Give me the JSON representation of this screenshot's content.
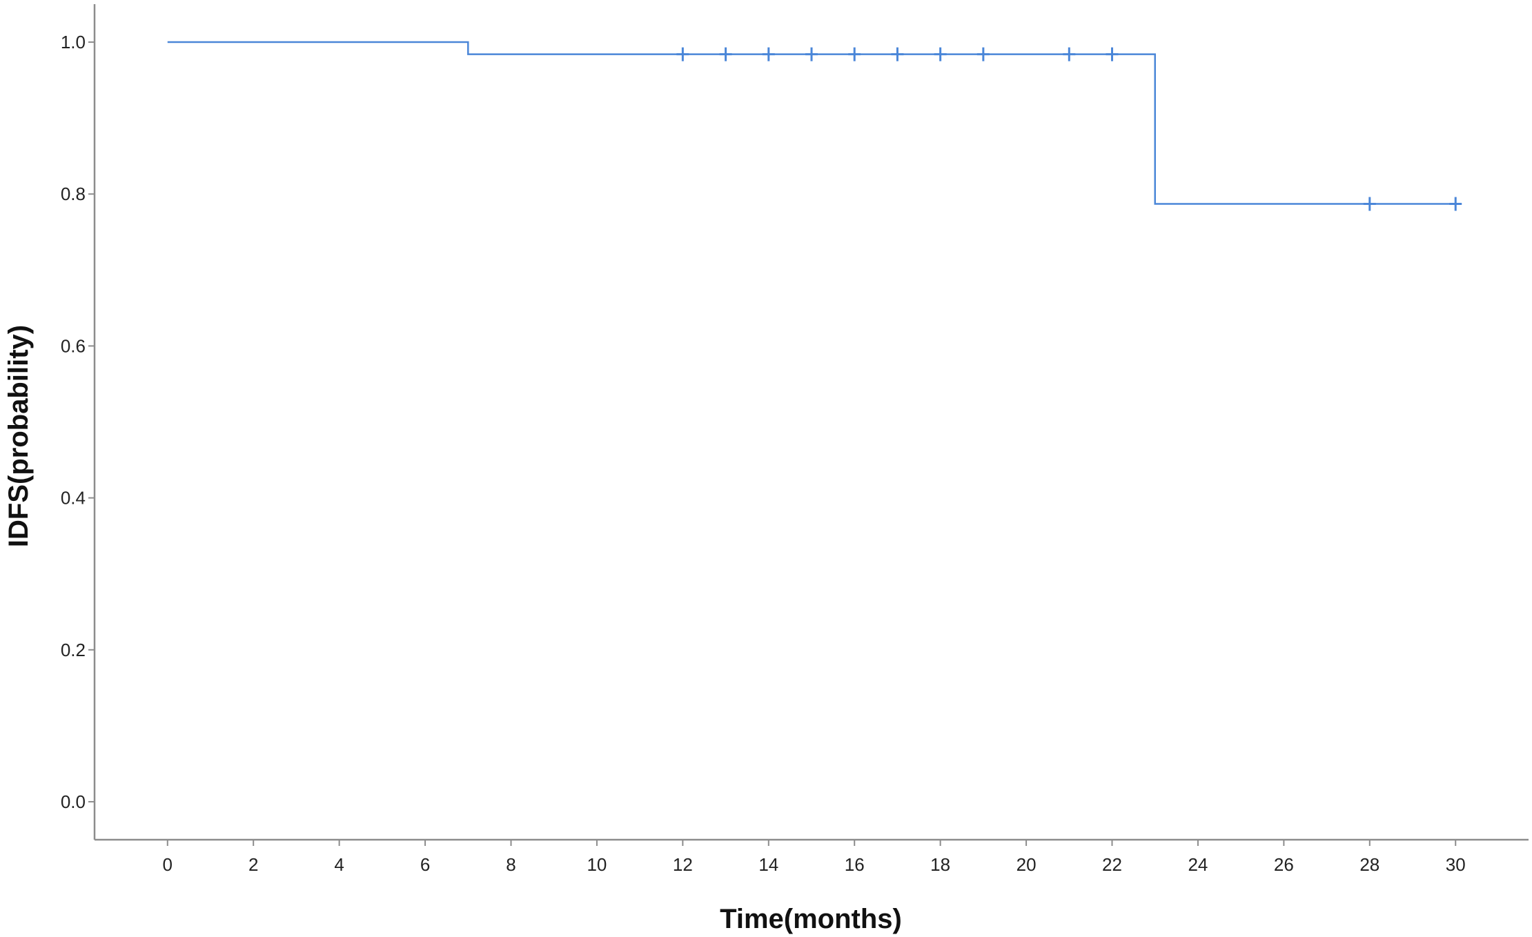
{
  "chart_data": {
    "type": "line",
    "subtype": "kaplan-meier step curve",
    "title": "",
    "xlabel": "Time(months)",
    "ylabel": "IDFS(probability)",
    "xlim": [
      -1.7,
      31.7
    ],
    "ylim": [
      -0.05,
      1.05
    ],
    "xticks": [
      0,
      2,
      4,
      6,
      8,
      10,
      12,
      14,
      16,
      18,
      20,
      22,
      24,
      26,
      28,
      30
    ],
    "xtick_labels": [
      "0",
      "2",
      "4",
      "6",
      "8",
      "10",
      "12",
      "14",
      "16",
      "18",
      "20",
      "22",
      "24",
      "26",
      "28",
      "30"
    ],
    "yticks": [
      0.0,
      0.2,
      0.4,
      0.6,
      0.8,
      1.0
    ],
    "ytick_labels": [
      "0.0",
      "0.2",
      "0.4",
      "0.6",
      "0.8",
      "1.0"
    ],
    "grid": false,
    "legend": "none",
    "series": [
      {
        "color": "#4a86d8",
        "steps": [
          {
            "x": 0,
            "y": 1.0
          },
          {
            "x": 7,
            "y": 0.984
          },
          {
            "x": 23,
            "y": 0.787
          },
          {
            "x": 30,
            "y": 0.787
          }
        ],
        "censored": [
          {
            "x": 12,
            "y": 0.984
          },
          {
            "x": 13,
            "y": 0.984
          },
          {
            "x": 14,
            "y": 0.984
          },
          {
            "x": 15,
            "y": 0.984
          },
          {
            "x": 16,
            "y": 0.984
          },
          {
            "x": 17,
            "y": 0.984
          },
          {
            "x": 18,
            "y": 0.984
          },
          {
            "x": 19,
            "y": 0.984
          },
          {
            "x": 21,
            "y": 0.984
          },
          {
            "x": 22,
            "y": 0.984
          },
          {
            "x": 28,
            "y": 0.787
          },
          {
            "x": 30,
            "y": 0.787
          }
        ]
      }
    ],
    "axis_color": "#8c8c8c"
  }
}
